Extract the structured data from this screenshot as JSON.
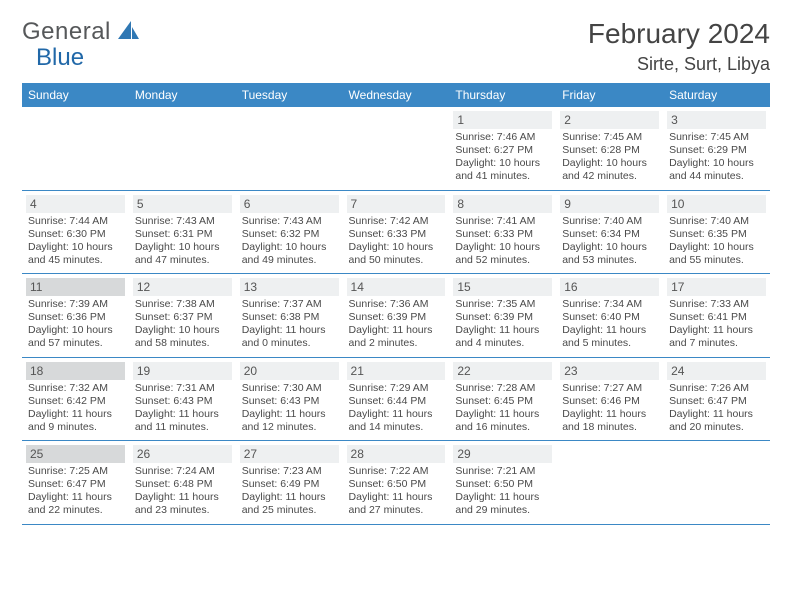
{
  "logo": {
    "text1": "General",
    "text2": "Blue"
  },
  "title": "February 2024",
  "location": "Sirte, Surt, Libya",
  "colors": {
    "header_bg": "#3b88c5",
    "header_text": "#ffffff",
    "day_bg": "#eef0f1",
    "day_bg_highlight": "#d7d9da",
    "row_border": "#3b88c5",
    "logo_gray": "#56585a",
    "logo_blue": "#2168a8",
    "body_text": "#4a4a4a"
  },
  "weekdays": [
    "Sunday",
    "Monday",
    "Tuesday",
    "Wednesday",
    "Thursday",
    "Friday",
    "Saturday"
  ],
  "weeks": [
    [
      {
        "empty": true
      },
      {
        "empty": true
      },
      {
        "empty": true
      },
      {
        "empty": true
      },
      {
        "day": "1",
        "sunrise": "Sunrise: 7:46 AM",
        "sunset": "Sunset: 6:27 PM",
        "daylight": "Daylight: 10 hours and 41 minutes."
      },
      {
        "day": "2",
        "sunrise": "Sunrise: 7:45 AM",
        "sunset": "Sunset: 6:28 PM",
        "daylight": "Daylight: 10 hours and 42 minutes."
      },
      {
        "day": "3",
        "sunrise": "Sunrise: 7:45 AM",
        "sunset": "Sunset: 6:29 PM",
        "daylight": "Daylight: 10 hours and 44 minutes."
      }
    ],
    [
      {
        "day": "4",
        "sunrise": "Sunrise: 7:44 AM",
        "sunset": "Sunset: 6:30 PM",
        "daylight": "Daylight: 10 hours and 45 minutes."
      },
      {
        "day": "5",
        "sunrise": "Sunrise: 7:43 AM",
        "sunset": "Sunset: 6:31 PM",
        "daylight": "Daylight: 10 hours and 47 minutes."
      },
      {
        "day": "6",
        "sunrise": "Sunrise: 7:43 AM",
        "sunset": "Sunset: 6:32 PM",
        "daylight": "Daylight: 10 hours and 49 minutes."
      },
      {
        "day": "7",
        "sunrise": "Sunrise: 7:42 AM",
        "sunset": "Sunset: 6:33 PM",
        "daylight": "Daylight: 10 hours and 50 minutes."
      },
      {
        "day": "8",
        "sunrise": "Sunrise: 7:41 AM",
        "sunset": "Sunset: 6:33 PM",
        "daylight": "Daylight: 10 hours and 52 minutes."
      },
      {
        "day": "9",
        "sunrise": "Sunrise: 7:40 AM",
        "sunset": "Sunset: 6:34 PM",
        "daylight": "Daylight: 10 hours and 53 minutes."
      },
      {
        "day": "10",
        "sunrise": "Sunrise: 7:40 AM",
        "sunset": "Sunset: 6:35 PM",
        "daylight": "Daylight: 10 hours and 55 minutes."
      }
    ],
    [
      {
        "day": "11",
        "highlight": true,
        "sunrise": "Sunrise: 7:39 AM",
        "sunset": "Sunset: 6:36 PM",
        "daylight": "Daylight: 10 hours and 57 minutes."
      },
      {
        "day": "12",
        "sunrise": "Sunrise: 7:38 AM",
        "sunset": "Sunset: 6:37 PM",
        "daylight": "Daylight: 10 hours and 58 minutes."
      },
      {
        "day": "13",
        "sunrise": "Sunrise: 7:37 AM",
        "sunset": "Sunset: 6:38 PM",
        "daylight": "Daylight: 11 hours and 0 minutes."
      },
      {
        "day": "14",
        "sunrise": "Sunrise: 7:36 AM",
        "sunset": "Sunset: 6:39 PM",
        "daylight": "Daylight: 11 hours and 2 minutes."
      },
      {
        "day": "15",
        "sunrise": "Sunrise: 7:35 AM",
        "sunset": "Sunset: 6:39 PM",
        "daylight": "Daylight: 11 hours and 4 minutes."
      },
      {
        "day": "16",
        "sunrise": "Sunrise: 7:34 AM",
        "sunset": "Sunset: 6:40 PM",
        "daylight": "Daylight: 11 hours and 5 minutes."
      },
      {
        "day": "17",
        "sunrise": "Sunrise: 7:33 AM",
        "sunset": "Sunset: 6:41 PM",
        "daylight": "Daylight: 11 hours and 7 minutes."
      }
    ],
    [
      {
        "day": "18",
        "highlight": true,
        "sunrise": "Sunrise: 7:32 AM",
        "sunset": "Sunset: 6:42 PM",
        "daylight": "Daylight: 11 hours and 9 minutes."
      },
      {
        "day": "19",
        "sunrise": "Sunrise: 7:31 AM",
        "sunset": "Sunset: 6:43 PM",
        "daylight": "Daylight: 11 hours and 11 minutes."
      },
      {
        "day": "20",
        "sunrise": "Sunrise: 7:30 AM",
        "sunset": "Sunset: 6:43 PM",
        "daylight": "Daylight: 11 hours and 12 minutes."
      },
      {
        "day": "21",
        "sunrise": "Sunrise: 7:29 AM",
        "sunset": "Sunset: 6:44 PM",
        "daylight": "Daylight: 11 hours and 14 minutes."
      },
      {
        "day": "22",
        "sunrise": "Sunrise: 7:28 AM",
        "sunset": "Sunset: 6:45 PM",
        "daylight": "Daylight: 11 hours and 16 minutes."
      },
      {
        "day": "23",
        "sunrise": "Sunrise: 7:27 AM",
        "sunset": "Sunset: 6:46 PM",
        "daylight": "Daylight: 11 hours and 18 minutes."
      },
      {
        "day": "24",
        "sunrise": "Sunrise: 7:26 AM",
        "sunset": "Sunset: 6:47 PM",
        "daylight": "Daylight: 11 hours and 20 minutes."
      }
    ],
    [
      {
        "day": "25",
        "highlight": true,
        "sunrise": "Sunrise: 7:25 AM",
        "sunset": "Sunset: 6:47 PM",
        "daylight": "Daylight: 11 hours and 22 minutes."
      },
      {
        "day": "26",
        "sunrise": "Sunrise: 7:24 AM",
        "sunset": "Sunset: 6:48 PM",
        "daylight": "Daylight: 11 hours and 23 minutes."
      },
      {
        "day": "27",
        "sunrise": "Sunrise: 7:23 AM",
        "sunset": "Sunset: 6:49 PM",
        "daylight": "Daylight: 11 hours and 25 minutes."
      },
      {
        "day": "28",
        "sunrise": "Sunrise: 7:22 AM",
        "sunset": "Sunset: 6:50 PM",
        "daylight": "Daylight: 11 hours and 27 minutes."
      },
      {
        "day": "29",
        "sunrise": "Sunrise: 7:21 AM",
        "sunset": "Sunset: 6:50 PM",
        "daylight": "Daylight: 11 hours and 29 minutes."
      },
      {
        "empty": true
      },
      {
        "empty": true
      }
    ]
  ]
}
